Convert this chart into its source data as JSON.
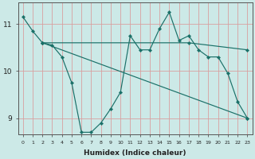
{
  "xlabel": "Humidex (Indice chaleur)",
  "bg_color": "#cce9e7",
  "grid_color": "#d8a0a0",
  "line_color": "#1a7068",
  "ylim": [
    8.65,
    11.45
  ],
  "xlim": [
    -0.5,
    23.5
  ],
  "yticks": [
    9,
    10,
    11
  ],
  "xticks": [
    0,
    1,
    2,
    3,
    4,
    5,
    6,
    7,
    8,
    9,
    10,
    11,
    12,
    13,
    14,
    15,
    16,
    17,
    18,
    19,
    20,
    21,
    22,
    23
  ],
  "series1_x": [
    0,
    1,
    2,
    3,
    4,
    5,
    6,
    7,
    8,
    9,
    10,
    11,
    12,
    13,
    14,
    15,
    16,
    17,
    18,
    19,
    20,
    21,
    22,
    23
  ],
  "series1_y": [
    11.15,
    10.85,
    10.6,
    10.55,
    10.3,
    9.75,
    8.7,
    8.7,
    8.9,
    9.2,
    9.55,
    10.75,
    10.45,
    10.45,
    10.9,
    11.25,
    10.65,
    10.75,
    10.45,
    10.3,
    10.3,
    9.95,
    9.35,
    9.0
  ],
  "series2_x": [
    2,
    23
  ],
  "series2_y": [
    10.6,
    9.0
  ],
  "series3_x": [
    2,
    17,
    23
  ],
  "series3_y": [
    10.6,
    10.6,
    10.45
  ],
  "figsize": [
    3.2,
    2.0
  ],
  "dpi": 100
}
